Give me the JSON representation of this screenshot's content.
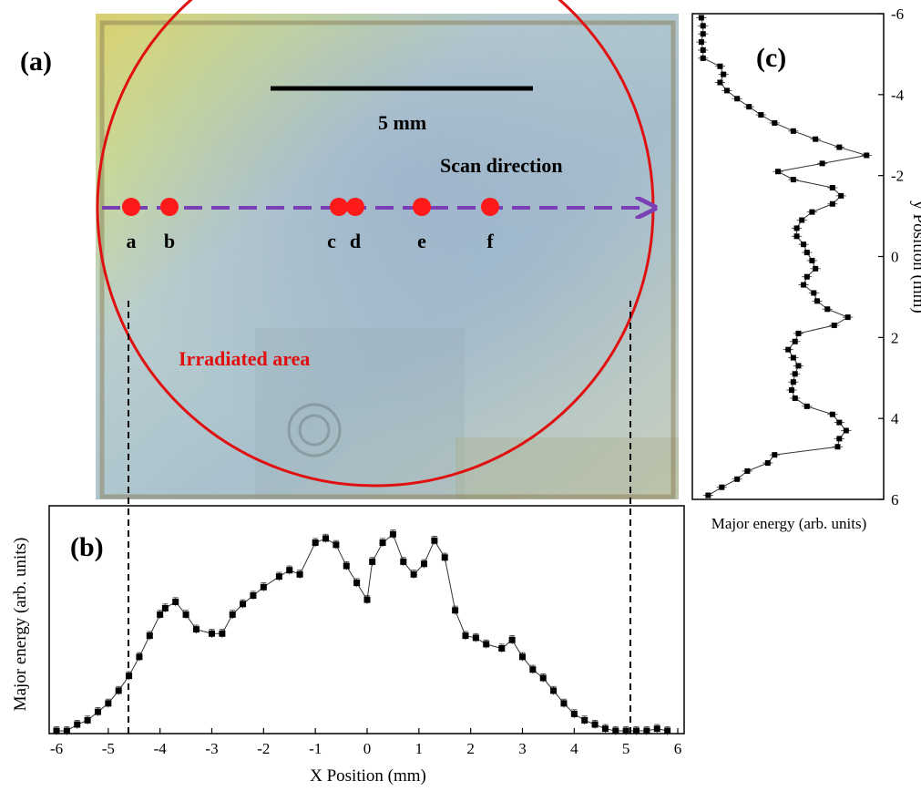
{
  "panels": {
    "a_label": "(a)",
    "b_label": "(b)",
    "c_label": "(c)"
  },
  "image_panel": {
    "scale_bar_label": "5 mm",
    "scan_direction_label": "Scan direction",
    "irradiated_label": "Irradiated area",
    "point_labels": [
      "a",
      "b",
      "c",
      "d",
      "e",
      "f"
    ],
    "colors": {
      "circle": "#e01010",
      "arrow": "#7a3fb5",
      "points": "#ff1a1a"
    }
  },
  "chart_data": [
    {
      "type": "line",
      "panel": "b",
      "xlabel": "X Position (mm)",
      "ylabel": "Major energy (arb. units)",
      "xlim": [
        -6,
        6
      ],
      "x_ticks": [
        "-6",
        "-5",
        "-4",
        "-3",
        "-2",
        "-1",
        "0",
        "1",
        "2",
        "3",
        "4",
        "5",
        "6"
      ],
      "y_ticks_shown": false,
      "marker": "square",
      "error_bars": true,
      "vertical_markers": [
        -4.5,
        5.0
      ],
      "x": [
        -6.0,
        -5.8,
        -5.6,
        -5.4,
        -5.2,
        -5.0,
        -4.8,
        -4.6,
        -4.4,
        -4.2,
        -4.0,
        -3.9,
        -3.7,
        -3.5,
        -3.3,
        -3.0,
        -2.8,
        -2.6,
        -2.4,
        -2.2,
        -2.0,
        -1.7,
        -1.5,
        -1.3,
        -1.0,
        -0.8,
        -0.6,
        -0.4,
        -0.2,
        0.0,
        0.1,
        0.3,
        0.5,
        0.7,
        0.9,
        1.1,
        1.3,
        1.5,
        1.7,
        1.9,
        2.1,
        2.3,
        2.6,
        2.8,
        3.0,
        3.2,
        3.4,
        3.6,
        3.8,
        4.0,
        4.2,
        4.4,
        4.6,
        4.8,
        5.0,
        5.2,
        5.4,
        5.6,
        5.8
      ],
      "y": [
        0.0,
        0.0,
        0.03,
        0.05,
        0.09,
        0.13,
        0.19,
        0.26,
        0.35,
        0.45,
        0.55,
        0.58,
        0.61,
        0.55,
        0.48,
        0.46,
        0.46,
        0.55,
        0.6,
        0.64,
        0.68,
        0.73,
        0.76,
        0.74,
        0.89,
        0.91,
        0.88,
        0.78,
        0.7,
        0.62,
        0.8,
        0.89,
        0.93,
        0.8,
        0.74,
        0.79,
        0.9,
        0.82,
        0.57,
        0.45,
        0.44,
        0.41,
        0.39,
        0.43,
        0.35,
        0.29,
        0.25,
        0.19,
        0.13,
        0.08,
        0.05,
        0.03,
        0.01,
        0.0,
        0.0,
        0.0,
        0.0,
        0.01,
        0.0
      ],
      "yerr": 0.02
    },
    {
      "type": "line",
      "panel": "c",
      "orientation": "vertical",
      "xlabel": "Major energy (arb. units)",
      "ylabel": "y Position (mm)",
      "ylim": [
        -6,
        6
      ],
      "y_ticks": [
        "-6",
        "-4",
        "-2",
        "0",
        "2",
        "4",
        "6"
      ],
      "x_ticks_shown": false,
      "marker": "square",
      "error_bars": true,
      "y": [
        -5.9,
        -5.7,
        -5.5,
        -5.3,
        -5.1,
        -4.9,
        -4.7,
        -4.5,
        -4.3,
        -4.1,
        -3.9,
        -3.7,
        -3.5,
        -3.3,
        -3.1,
        -2.9,
        -2.7,
        -2.5,
        -2.3,
        -2.1,
        -1.9,
        -1.7,
        -1.5,
        -1.3,
        -1.1,
        -0.9,
        -0.7,
        -0.5,
        -0.3,
        -0.1,
        0.1,
        0.3,
        0.5,
        0.7,
        0.9,
        1.1,
        1.3,
        1.5,
        1.7,
        1.9,
        2.1,
        2.3,
        2.5,
        2.7,
        2.9,
        3.1,
        3.3,
        3.5,
        3.7,
        3.9,
        4.1,
        4.3,
        4.5,
        4.7,
        4.9,
        5.1,
        5.3,
        5.5,
        5.7,
        5.9
      ],
      "x": [
        0.01,
        0.02,
        0.02,
        0.01,
        0.02,
        0.02,
        0.12,
        0.14,
        0.12,
        0.16,
        0.22,
        0.29,
        0.36,
        0.44,
        0.55,
        0.68,
        0.82,
        0.98,
        0.72,
        0.46,
        0.55,
        0.78,
        0.83,
        0.78,
        0.66,
        0.6,
        0.57,
        0.57,
        0.61,
        0.63,
        0.66,
        0.68,
        0.63,
        0.61,
        0.67,
        0.69,
        0.75,
        0.87,
        0.79,
        0.58,
        0.56,
        0.52,
        0.55,
        0.58,
        0.56,
        0.55,
        0.54,
        0.56,
        0.63,
        0.78,
        0.82,
        0.86,
        0.82,
        0.81,
        0.44,
        0.4,
        0.28,
        0.22,
        0.13,
        0.05
      ],
      "xerr": 0.03
    }
  ]
}
